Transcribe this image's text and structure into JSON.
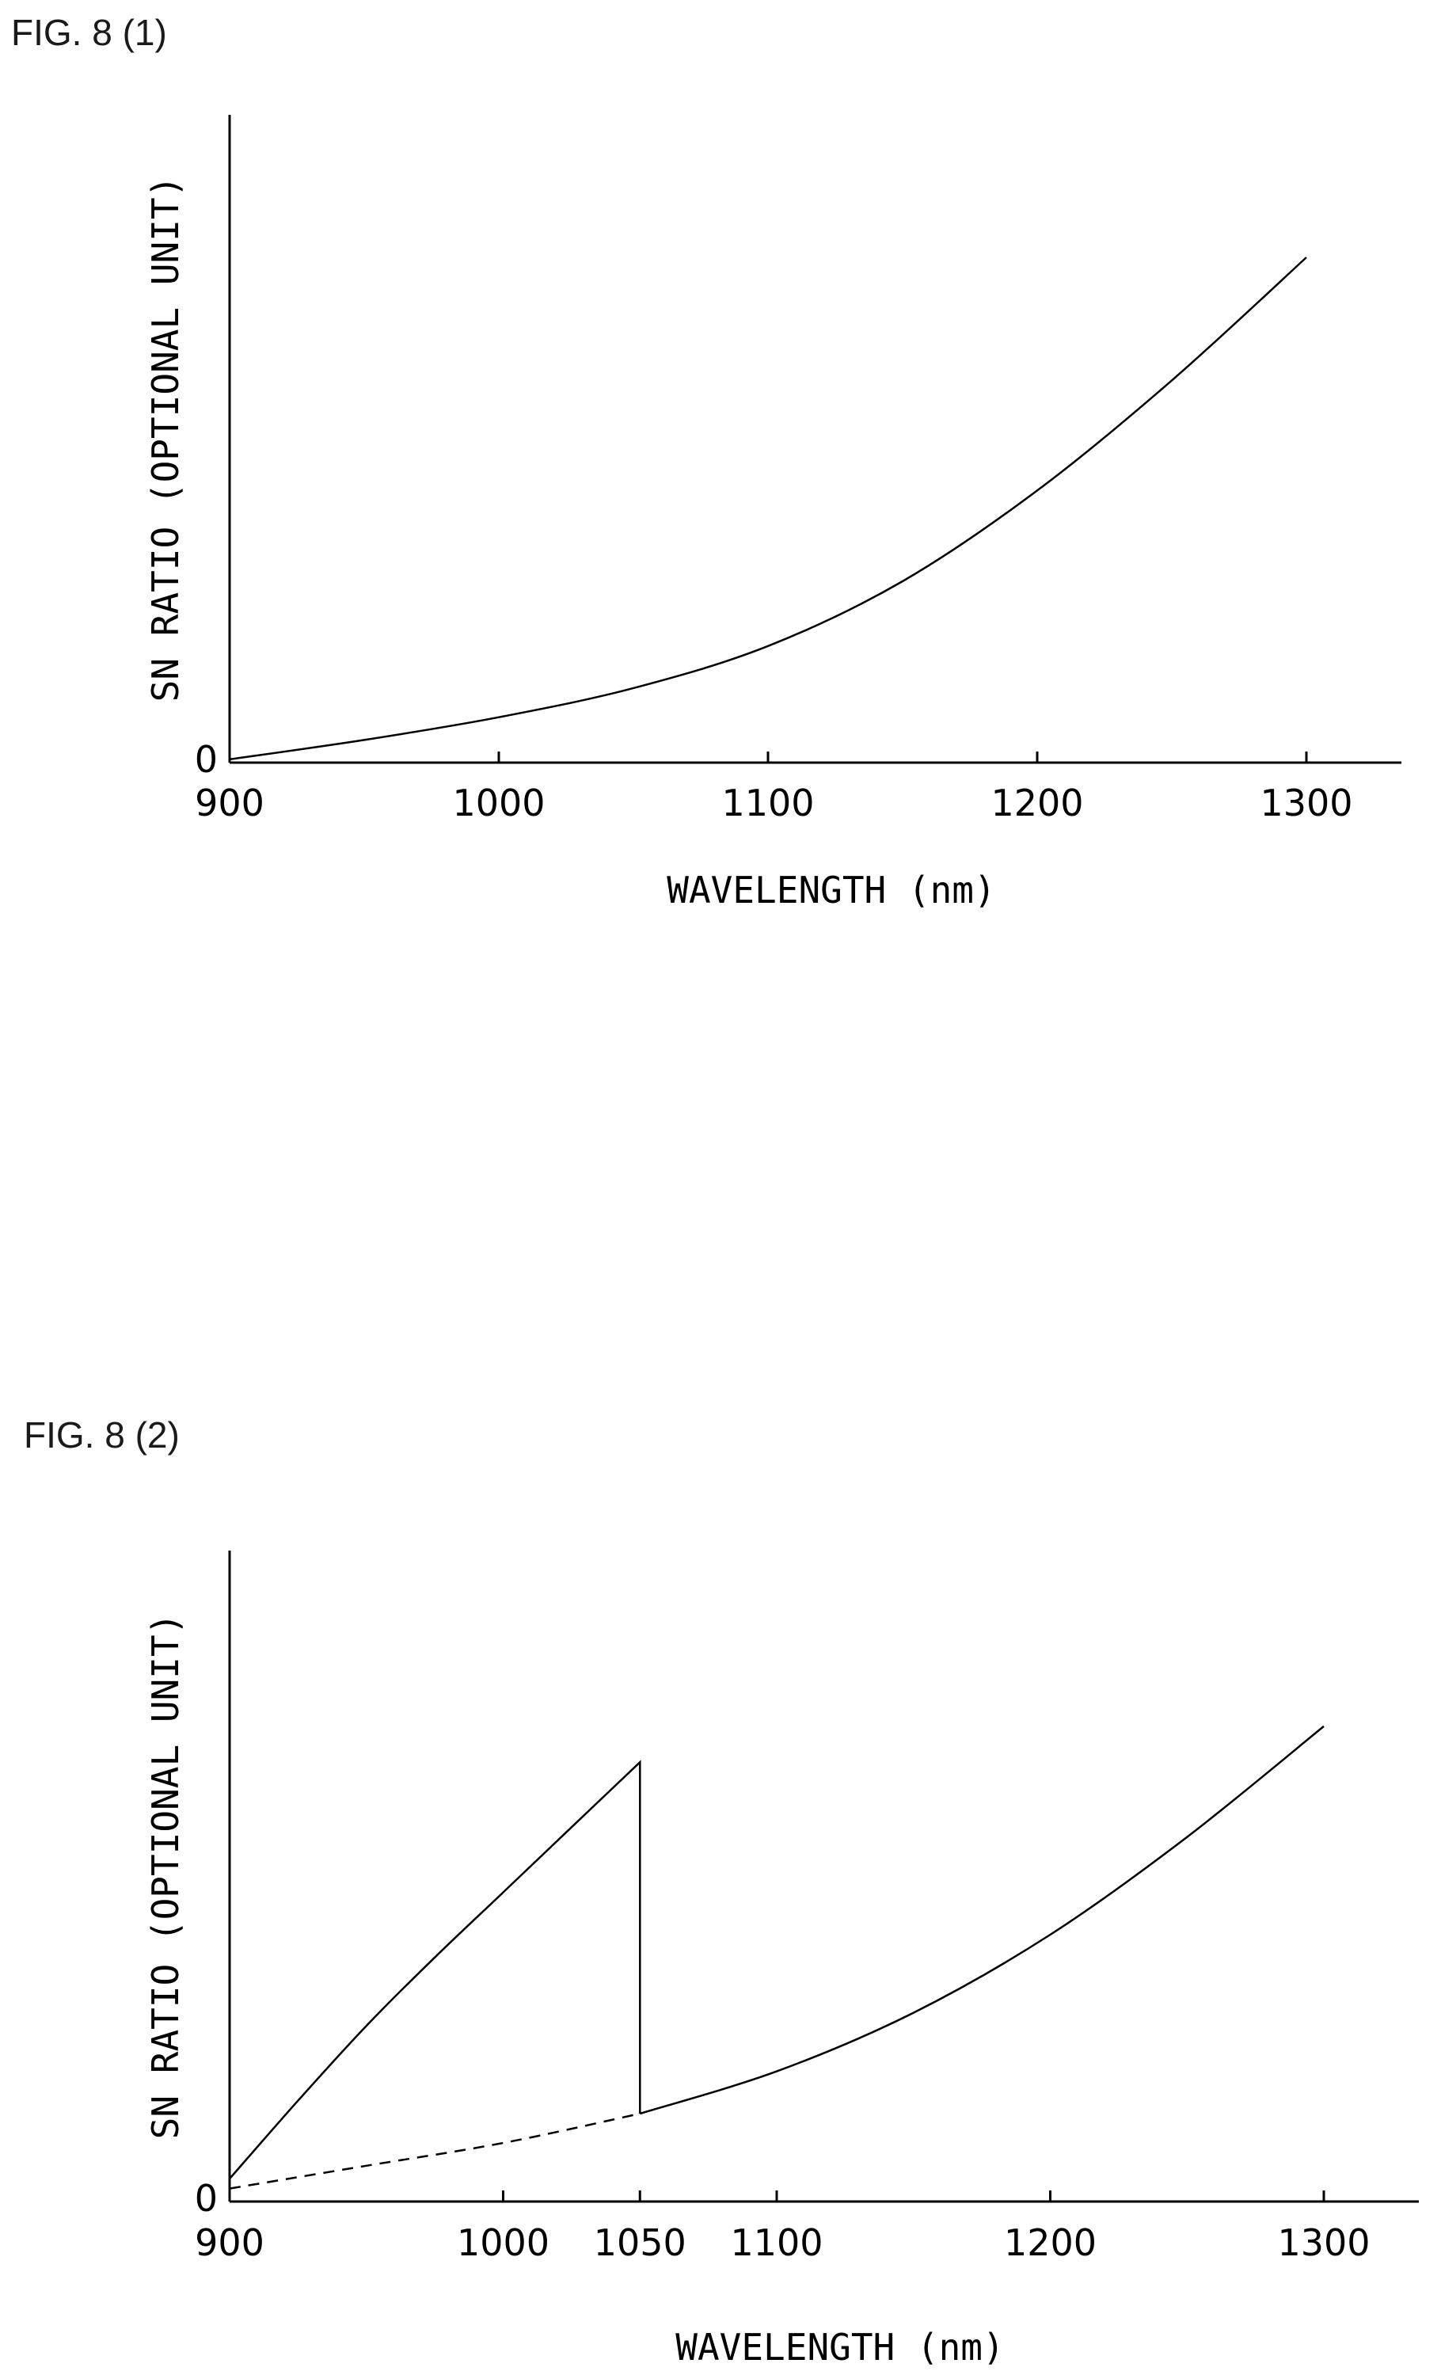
{
  "chart_data": [
    {
      "type": "line",
      "title": "FIG. 8 (1)",
      "xlabel": "WAVELENGTH (nm)",
      "ylabel": "SN RATIO (OPTIONAL UNIT)",
      "xlim": [
        900,
        1330
      ],
      "ylim": [
        0,
        10
      ],
      "x_ticks": [
        900,
        1000,
        1100,
        1200,
        1300
      ],
      "y_ticks": [
        0
      ],
      "grid": false,
      "series": [
        {
          "style": "solid",
          "x": [
            900,
            950,
            1000,
            1050,
            1100,
            1150,
            1200,
            1250,
            1300
          ],
          "y": [
            0.05,
            0.35,
            0.7,
            1.15,
            1.8,
            2.8,
            4.2,
            5.9,
            7.8
          ]
        }
      ]
    },
    {
      "type": "line",
      "title": "FIG. 8 (2)",
      "xlabel": "WAVELENGTH (nm)",
      "ylabel": "SN RATIO (OPTIONAL UNIT)",
      "xlim": [
        900,
        1335
      ],
      "ylim": [
        0,
        10
      ],
      "x_ticks": [
        900,
        1000,
        1050,
        1100,
        1200,
        1300
      ],
      "y_ticks": [
        0
      ],
      "grid": false,
      "series": [
        {
          "style": "solid",
          "x": [
            900,
            925,
            950,
            975,
            1000,
            1025,
            1050,
            1050
          ],
          "y": [
            0.35,
            1.55,
            2.7,
            3.75,
            4.75,
            5.75,
            6.75,
            1.35
          ]
        },
        {
          "style": "dashed",
          "x": [
            900,
            950,
            1000,
            1050
          ],
          "y": [
            0.2,
            0.55,
            0.9,
            1.35
          ]
        },
        {
          "style": "solid",
          "x": [
            1050,
            1100,
            1150,
            1200,
            1250,
            1300
          ],
          "y": [
            1.35,
            2.0,
            2.9,
            4.1,
            5.6,
            7.3
          ]
        }
      ]
    }
  ]
}
